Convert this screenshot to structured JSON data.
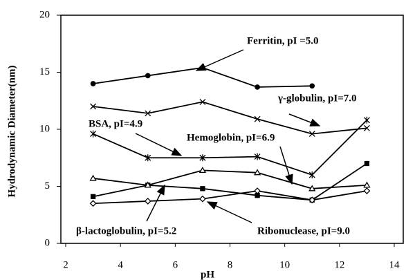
{
  "chart_data": {
    "type": "line",
    "x_label": "pH",
    "y_label": "Hydrodynamic Diameter(nm)",
    "x": [
      3,
      5,
      7,
      9,
      11,
      13
    ],
    "series": [
      {
        "name": "Ferritin, pI =5.0",
        "color": "#000000",
        "marker": "circle",
        "values": [
          14.0,
          14.7,
          15.4,
          13.7,
          13.8,
          null
        ]
      },
      {
        "name": "γ-globulin, pI=7.0",
        "color": "#000000",
        "marker": "x",
        "values": [
          12.0,
          11.4,
          12.4,
          10.9,
          9.6,
          10.1
        ]
      },
      {
        "name": "BSA, pI=4.9",
        "color": "#000000",
        "marker": "star",
        "values": [
          9.6,
          7.5,
          7.5,
          7.6,
          6.0,
          10.8
        ]
      },
      {
        "name": "Hemoglobin, pI=6.9",
        "color": "#000000",
        "marker": "square",
        "values": [
          4.1,
          5.1,
          4.8,
          4.2,
          3.8,
          7.0
        ]
      },
      {
        "name": "β-lactoglobulin, pI=5.2",
        "color": "#000000",
        "marker": "triangle",
        "values": [
          5.7,
          5.1,
          6.4,
          6.2,
          4.8,
          5.1
        ]
      },
      {
        "name": "Ribonuclease, pI=9.0",
        "color": "#000000",
        "marker": "diamond",
        "values": [
          3.5,
          3.7,
          3.9,
          4.6,
          3.8,
          4.6
        ]
      }
    ],
    "xlim": [
      2,
      14
    ],
    "xticks": [
      2,
      4,
      6,
      8,
      10,
      12,
      14
    ],
    "ylim": [
      0,
      20
    ],
    "yticks": [
      0,
      5,
      10,
      15,
      20
    ],
    "grid": false
  }
}
